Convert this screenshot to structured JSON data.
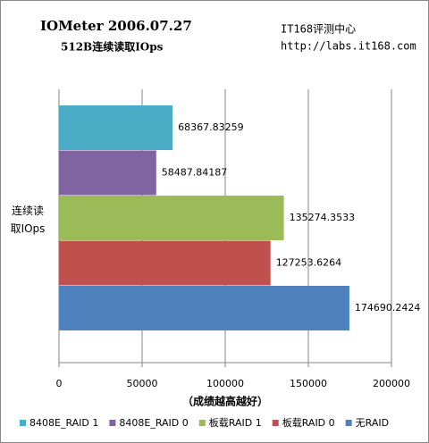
{
  "title": "IOMeter  2006.07.27",
  "subtitle": "512B连续读取IOps",
  "source": "IT168评测中心",
  "url": "http://labs.it168.com",
  "chart_data": {
    "type": "hbar",
    "xlabel": "（成绩越高越好）",
    "categories": [
      "连续读取IOps"
    ],
    "series": [
      {
        "name": "8408E_RAID 1",
        "color": "#4bacc6",
        "values": [
          68367.83259
        ]
      },
      {
        "name": "8408E_RAID 0",
        "color": "#8064a2",
        "values": [
          58487.84187
        ]
      },
      {
        "name": "板载RAID 1",
        "color": "#9bbb59",
        "values": [
          135274.3533
        ]
      },
      {
        "name": "板载RAID 0",
        "color": "#c0504d",
        "values": [
          127253.6264
        ]
      },
      {
        "name": "无RAID",
        "color": "#4f81bd",
        "values": [
          174690.2424
        ]
      }
    ],
    "xlim": [
      0,
      200000
    ],
    "xticks": [
      0,
      50000,
      100000,
      150000,
      200000
    ],
    "grid": true
  }
}
